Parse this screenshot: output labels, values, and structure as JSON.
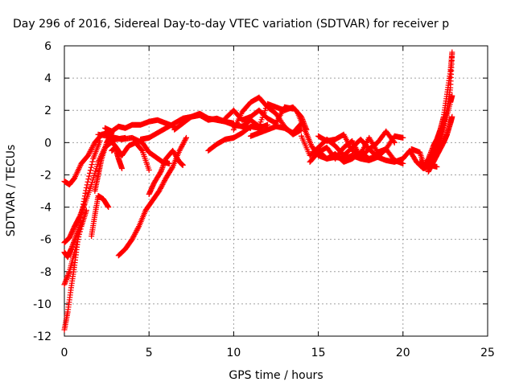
{
  "colors": {
    "series": "#ff0000",
    "grid": "#a0a0a0",
    "axis": "#000000"
  },
  "chart_data": {
    "type": "scatter",
    "title": "Day 296 of 2016, Sidereal Day-to-day VTEC variation (SDTVAR) for receiver p",
    "xlabel": "GPS time / hours",
    "ylabel": "SDTVAR / TECUs",
    "xlim": [
      0,
      25
    ],
    "ylim": [
      -12,
      6
    ],
    "xticks": [
      0,
      5,
      10,
      15,
      20,
      25
    ],
    "yticks": [
      -12,
      -10,
      -8,
      -6,
      -4,
      -2,
      0,
      2,
      4,
      6
    ],
    "grid": true,
    "legend": "none",
    "marker": "+",
    "series": [
      {
        "x": [
          0,
          0.3,
          0.6,
          1.0,
          1.4,
          1.8,
          2.2,
          2.6
        ],
        "y": [
          -2.4,
          -2.6,
          -2.2,
          -1.3,
          -0.8,
          0.0,
          0.5,
          0.6
        ]
      },
      {
        "x": [
          0,
          0.3,
          0.6,
          0.9,
          1.2,
          1.6,
          2.0,
          2.4,
          3.0,
          3.6
        ],
        "y": [
          -6.2,
          -5.9,
          -5.2,
          -4.6,
          -3.8,
          -2.6,
          -1.2,
          -0.3,
          0.2,
          0.3
        ]
      },
      {
        "x": [
          0,
          0.2,
          0.4,
          0.6,
          0.8,
          1.0,
          1.3,
          1.7,
          2.1
        ],
        "y": [
          -11.6,
          -10.5,
          -9.0,
          -7.6,
          -6.0,
          -4.5,
          -2.8,
          -1.0,
          0.1
        ]
      },
      {
        "x": [
          0,
          0.3,
          0.6,
          1.0,
          1.3
        ],
        "y": [
          -8.8,
          -8.0,
          -6.8,
          -5.2,
          -4.2
        ]
      },
      {
        "x": [
          0,
          0.2,
          0.4,
          0.7,
          1.0
        ],
        "y": [
          -6.8,
          -7.1,
          -6.6,
          -5.8,
          -5.0
        ]
      },
      {
        "x": [
          1.6,
          1.8,
          2.0,
          2.3,
          2.6
        ],
        "y": [
          -5.8,
          -4.5,
          -3.3,
          -3.5,
          -4.0
        ]
      },
      {
        "x": [
          1.8,
          2.0,
          2.2,
          2.5,
          2.8
        ],
        "y": [
          -3.0,
          -2.0,
          -1.0,
          0.0,
          0.6
        ]
      },
      {
        "x": [
          3.2,
          3.6,
          4.0,
          4.4,
          4.8,
          5.2,
          5.6,
          6.0,
          6.4,
          6.8,
          7.2
        ],
        "y": [
          -7.0,
          -6.6,
          -6.0,
          -5.2,
          -4.2,
          -3.6,
          -3.0,
          -2.2,
          -1.5,
          -0.5,
          0.3
        ]
      },
      {
        "x": [
          5.0,
          5.3,
          5.7,
          6.0,
          6.4,
          6.8,
          7.0
        ],
        "y": [
          -3.2,
          -2.5,
          -1.8,
          -1.0,
          -0.5,
          -1.2,
          -1.4
        ]
      },
      {
        "x": [
          2.0,
          2.6,
          3.0,
          3.4,
          4.0,
          4.6,
          5.0,
          5.4,
          5.8,
          6.2
        ],
        "y": [
          0.5,
          0.4,
          0.3,
          0.2,
          0.3,
          0.0,
          -0.6,
          -0.9,
          -1.2,
          -1.3
        ]
      },
      {
        "x": [
          2.6,
          3.0,
          3.4,
          3.8,
          4.2,
          4.6,
          5.0
        ],
        "y": [
          0.3,
          -0.2,
          -0.8,
          -0.2,
          0.0,
          -0.5,
          -1.7
        ]
      },
      {
        "x": [
          2.4,
          2.8,
          3.2,
          3.6,
          4.0,
          4.5,
          5.0,
          5.5,
          6.0,
          6.5
        ],
        "y": [
          0.9,
          0.7,
          1.0,
          0.9,
          1.1,
          1.1,
          1.3,
          1.4,
          1.2,
          1.0
        ]
      },
      {
        "x": [
          2.8,
          3.0,
          3.2,
          3.4
        ],
        "y": [
          -0.5,
          -0.3,
          -1.0,
          -1.6
        ]
      },
      {
        "x": [
          4.5,
          5.0,
          5.5,
          6.0,
          6.5,
          7.0,
          7.5,
          8.0,
          8.5,
          9.0,
          9.5,
          10.0
        ],
        "y": [
          0.2,
          0.3,
          0.6,
          0.9,
          1.2,
          1.5,
          1.6,
          1.7,
          1.4,
          1.5,
          1.3,
          1.2
        ]
      },
      {
        "x": [
          6.5,
          7.0,
          7.5,
          8.0,
          8.5,
          9.0,
          9.5,
          10.0,
          10.5,
          11.0
        ],
        "y": [
          0.8,
          1.2,
          1.6,
          1.8,
          1.5,
          1.4,
          1.3,
          1.1,
          1.0,
          0.9
        ]
      },
      {
        "x": [
          8.5,
          9.0,
          9.5,
          10.0,
          10.5,
          11.0,
          11.5,
          12.0
        ],
        "y": [
          -0.5,
          -0.1,
          0.2,
          0.3,
          0.6,
          1.0,
          0.9,
          1.1
        ]
      },
      {
        "x": [
          10.0,
          10.5,
          11.0,
          11.5,
          12.0,
          12.5,
          13.0,
          13.5,
          14.0
        ],
        "y": [
          0.8,
          1.9,
          2.5,
          2.8,
          2.2,
          1.8,
          1.0,
          0.5,
          0.8
        ]
      },
      {
        "x": [
          9.5,
          10.0,
          10.5,
          11.0,
          11.5,
          12.0,
          12.5,
          13.0,
          13.5
        ],
        "y": [
          1.5,
          2.0,
          1.4,
          1.6,
          2.0,
          1.5,
          1.2,
          2.2,
          2.1
        ]
      },
      {
        "x": [
          10.5,
          11.0,
          11.5,
          12.0,
          12.5,
          13.0,
          13.5,
          14.0,
          14.3
        ],
        "y": [
          1.0,
          1.4,
          1.0,
          2.4,
          2.2,
          2.0,
          2.2,
          1.6,
          0.8
        ]
      },
      {
        "x": [
          11.0,
          11.5,
          12.0,
          12.5,
          13.0,
          13.5,
          14.0
        ],
        "y": [
          0.4,
          0.6,
          0.8,
          1.0,
          0.9,
          0.6,
          1.2
        ]
      },
      {
        "x": [
          13.8,
          14.2,
          14.6,
          15.0,
          15.5,
          16.0,
          16.5,
          17.0,
          17.5,
          18.0,
          18.5,
          19.0,
          19.5,
          20.0
        ],
        "y": [
          1.8,
          0.8,
          -0.2,
          -0.8,
          -1.0,
          -0.9,
          -1.0,
          -0.8,
          -1.0,
          -1.1,
          -0.9,
          -1.1,
          -1.2,
          -1.0
        ]
      },
      {
        "x": [
          14.0,
          14.5,
          15.0,
          15.5,
          16.0,
          16.5,
          17.0,
          17.5,
          18.0,
          18.5,
          19.0,
          19.5,
          20.0
        ],
        "y": [
          0.4,
          -0.8,
          -0.3,
          0.2,
          -0.2,
          -0.8,
          -0.3,
          0.2,
          -0.4,
          -0.9,
          -0.4,
          0.4,
          0.3
        ]
      },
      {
        "x": [
          14.5,
          15.0,
          15.5,
          16.0,
          16.5,
          17.0,
          17.5,
          18.0,
          18.5,
          19.0,
          19.5
        ],
        "y": [
          -1.2,
          -0.6,
          -0.3,
          -1.0,
          -0.3,
          0.1,
          -0.9,
          -0.4,
          0.0,
          0.7,
          0.0
        ]
      },
      {
        "x": [
          15.0,
          15.5,
          16.0,
          16.5,
          17.0,
          17.5,
          18.0,
          18.5,
          19.0
        ],
        "y": [
          0.4,
          0.1,
          0.2,
          0.5,
          -0.5,
          -0.7,
          0.3,
          -0.6,
          -0.4
        ]
      },
      {
        "x": [
          15.0,
          15.5,
          16.0,
          16.5,
          17.0,
          17.5,
          18.0,
          18.5,
          19.0,
          19.5,
          20.0
        ],
        "y": [
          -0.5,
          -1.0,
          -0.7,
          -1.2,
          -1.0,
          -0.6,
          -1.0,
          -0.8,
          -0.4,
          -1.1,
          -1.3
        ]
      },
      {
        "x": [
          20.0,
          20.4,
          20.8,
          21.2,
          21.6,
          22.0
        ],
        "y": [
          -1.0,
          -0.5,
          -1.2,
          -1.6,
          -1.4,
          -1.5
        ]
      },
      {
        "x": [
          20.5,
          21.0,
          21.3,
          21.6,
          21.9,
          22.2,
          22.5,
          22.8,
          22.9
        ],
        "y": [
          -0.4,
          -0.6,
          -1.6,
          -1.2,
          -0.8,
          0.0,
          1.3,
          2.5,
          2.9
        ]
      },
      {
        "x": [
          21.0,
          21.3,
          21.6,
          21.9,
          22.2,
          22.4,
          22.6,
          22.8,
          22.9
        ],
        "y": [
          -1.2,
          -1.5,
          -1.0,
          -0.4,
          0.3,
          1.1,
          2.0,
          3.4,
          5.5
        ]
      },
      {
        "x": [
          21.2,
          21.5,
          21.8,
          22.0,
          22.2,
          22.4,
          22.6,
          22.8,
          22.9
        ],
        "y": [
          -1.6,
          -1.0,
          -0.2,
          0.2,
          0.8,
          1.6,
          3.0,
          4.4,
          5.6
        ]
      },
      {
        "x": [
          21.5,
          21.8,
          22.1,
          22.4,
          22.6,
          22.8,
          22.9
        ],
        "y": [
          -1.8,
          -1.2,
          -0.6,
          0.0,
          0.5,
          1.2,
          1.6
        ]
      }
    ]
  }
}
